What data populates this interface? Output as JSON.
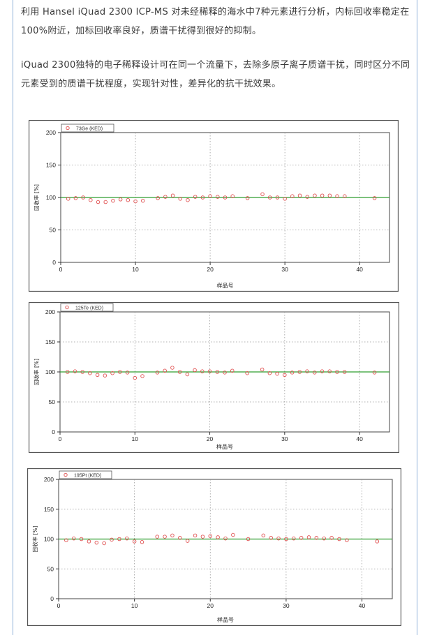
{
  "article": {
    "paragraph1": "利用 Hansel iQuad 2300 ICP-MS 对未经稀释的海水中7种元素进行分析，内标回收率稳定在100%附近，加标回收率良好，质谱干扰得到很好的抑制。",
    "paragraph2": "iQuad 2300独特的电子稀释设计可在同一个流量下，去除多原子离子质谱干扰，同时区分不同元素受到的质谱干扰程度，实现针对性，差异化的抗干扰效果。"
  },
  "colors": {
    "marker": "#e05050",
    "reference_line": "#2e9d2e",
    "border_blue": "#8fb0d8"
  },
  "chart_data": [
    {
      "type": "scatter",
      "legend": "73Ge (KED)",
      "xlabel": "样品号",
      "ylabel": "回收率 [%]",
      "xlim": [
        0,
        44
      ],
      "ylim": [
        0,
        200
      ],
      "xticks": [
        0,
        10,
        20,
        30,
        40
      ],
      "yticks": [
        0,
        50,
        100,
        150,
        200
      ],
      "reference_line": 100,
      "grid": true,
      "x": [
        1,
        2,
        3,
        4,
        5,
        6,
        7,
        8,
        9,
        10,
        11,
        13,
        14,
        15,
        16,
        17,
        18,
        19,
        20,
        21,
        22,
        23,
        25,
        27,
        28,
        29,
        30,
        31,
        32,
        33,
        34,
        35,
        36,
        37,
        38,
        42
      ],
      "y": [
        98,
        99,
        100,
        96,
        93,
        93,
        95,
        97,
        96,
        94,
        95,
        99,
        101,
        103,
        98,
        96,
        101,
        100,
        102,
        101,
        100,
        102,
        99,
        105,
        100,
        100,
        98,
        102,
        103,
        101,
        103,
        103,
        103,
        102,
        102,
        99
      ]
    },
    {
      "type": "scatter",
      "legend": "125Te (KED)",
      "xlabel": "样品号",
      "ylabel": "回收率 [%]",
      "xlim": [
        0,
        44
      ],
      "ylim": [
        0,
        200
      ],
      "xticks": [
        0,
        10,
        20,
        30,
        40
      ],
      "yticks": [
        0,
        50,
        100,
        150,
        200
      ],
      "reference_line": 100,
      "grid": true,
      "x": [
        1,
        2,
        3,
        4,
        5,
        6,
        7,
        8,
        9,
        10,
        11,
        13,
        14,
        15,
        16,
        17,
        18,
        19,
        20,
        21,
        22,
        23,
        25,
        27,
        28,
        29,
        30,
        31,
        32,
        33,
        34,
        35,
        36,
        37,
        38,
        42
      ],
      "y": [
        100,
        101,
        100,
        98,
        95,
        94,
        98,
        100,
        99,
        90,
        93,
        99,
        102,
        107,
        100,
        96,
        103,
        101,
        101,
        100,
        99,
        102,
        98,
        104,
        98,
        97,
        95,
        99,
        100,
        101,
        99,
        101,
        101,
        100,
        100,
        99
      ]
    },
    {
      "type": "scatter",
      "legend": "195Pt (KED)",
      "xlabel": "样品号",
      "ylabel": "回收率 [%]",
      "xlim": [
        0,
        44
      ],
      "ylim": [
        0,
        200
      ],
      "xticks": [
        0,
        10,
        20,
        30,
        40
      ],
      "yticks": [
        0,
        50,
        100,
        150,
        200
      ],
      "reference_line": 100,
      "grid": true,
      "x": [
        1,
        2,
        3,
        4,
        5,
        6,
        7,
        8,
        9,
        10,
        11,
        13,
        14,
        15,
        16,
        17,
        18,
        19,
        20,
        21,
        22,
        23,
        25,
        27,
        28,
        29,
        30,
        31,
        32,
        33,
        34,
        35,
        36,
        37,
        38,
        42
      ],
      "y": [
        98,
        101,
        100,
        96,
        94,
        93,
        99,
        100,
        101,
        96,
        95,
        104,
        104,
        106,
        102,
        97,
        106,
        104,
        105,
        103,
        101,
        107,
        100,
        106,
        102,
        101,
        100,
        101,
        102,
        103,
        102,
        101,
        102,
        100,
        98,
        96
      ]
    }
  ]
}
